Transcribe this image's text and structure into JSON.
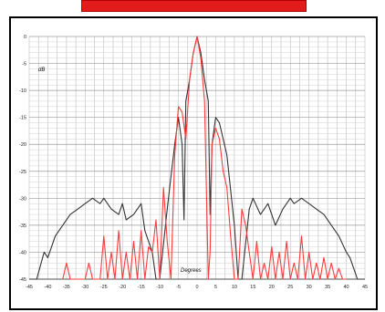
{
  "title_bar_color": "#e21b1b",
  "chart_data": {
    "type": "line",
    "title": "",
    "xlabel": "Degrees",
    "ylabel": "dB",
    "xlim": [
      -45,
      45
    ],
    "ylim": [
      -45,
      0
    ],
    "grid": true,
    "x_ticks": [
      -45,
      -40,
      -35,
      -30,
      -25,
      -20,
      -15,
      -10,
      -5,
      0,
      5,
      10,
      15,
      20,
      25,
      30,
      35,
      40,
      45
    ],
    "y_ticks": [
      0,
      -5,
      -10,
      -15,
      -20,
      -25,
      -30,
      -35,
      -40,
      -45
    ],
    "series": [
      {
        "color": "#333333",
        "x": [
          -45,
          -43,
          -41,
          -40,
          -38,
          -36,
          -34,
          -32,
          -30,
          -28,
          -26,
          -25,
          -23,
          -21,
          -20,
          -19,
          -17,
          -15,
          -14,
          -12,
          -11,
          -10,
          -8,
          -6,
          -5,
          -4,
          -3.5,
          -3,
          -2,
          -1,
          0,
          1,
          2,
          3,
          3.5,
          4,
          5,
          6,
          8,
          10,
          11,
          12,
          14,
          15,
          17,
          19,
          20,
          21,
          23,
          25,
          26,
          28,
          30,
          32,
          34,
          36,
          38,
          40,
          41,
          43,
          45
        ],
        "y": [
          -45,
          -45,
          -40,
          -41,
          -37,
          -35,
          -33,
          -32,
          -31,
          -30,
          -31,
          -30,
          -32,
          -33,
          -31,
          -34,
          -33,
          -31,
          -36,
          -40,
          -45,
          -45,
          -32,
          -20,
          -15,
          -20,
          -34,
          -12,
          -8,
          -3,
          0,
          -3,
          -8,
          -12,
          -33,
          -20,
          -15,
          -16,
          -22,
          -35,
          -45,
          -45,
          -32,
          -30,
          -33,
          -31,
          -33,
          -35,
          -32,
          -30,
          -31,
          -30,
          -31,
          -32,
          -33,
          -35,
          -37,
          -40,
          -41,
          -45,
          -45
        ]
      },
      {
        "color": "#ff3b3b",
        "x": [
          -36,
          -35,
          -34,
          -30,
          -29,
          -28,
          -26,
          -25,
          -24,
          -23,
          -22,
          -21,
          -20,
          -19,
          -18,
          -17,
          -16,
          -15,
          -14,
          -13,
          -12,
          -11,
          -10,
          -9,
          -8,
          -7,
          -6,
          -5,
          -4,
          -3,
          -2,
          -1,
          0,
          1,
          2,
          3,
          3.5,
          4,
          5,
          6,
          7,
          8,
          9,
          10,
          11,
          12,
          13,
          14,
          15,
          16,
          17,
          18,
          19,
          20,
          21,
          22,
          23,
          24,
          25,
          26,
          27,
          28,
          29,
          30,
          31,
          32,
          33,
          34,
          35,
          36,
          37,
          38,
          39,
          40
        ],
        "y": [
          -45,
          -42,
          -45,
          -45,
          -42,
          -45,
          -45,
          -37,
          -45,
          -40,
          -45,
          -36,
          -45,
          -40,
          -45,
          -38,
          -45,
          -36,
          -45,
          -39,
          -40,
          -34,
          -45,
          -28,
          -38,
          -45,
          -22,
          -13,
          -14,
          -19,
          -8,
          -3,
          0,
          -4,
          -12,
          -45,
          -40,
          -20,
          -17,
          -19,
          -25,
          -28,
          -37,
          -45,
          -45,
          -32,
          -35,
          -40,
          -45,
          -38,
          -45,
          -42,
          -45,
          -39,
          -45,
          -40,
          -45,
          -38,
          -45,
          -42,
          -45,
          -37,
          -45,
          -40,
          -45,
          -42,
          -45,
          -41,
          -45,
          -42,
          -45,
          -43,
          -45,
          -45
        ]
      }
    ]
  }
}
